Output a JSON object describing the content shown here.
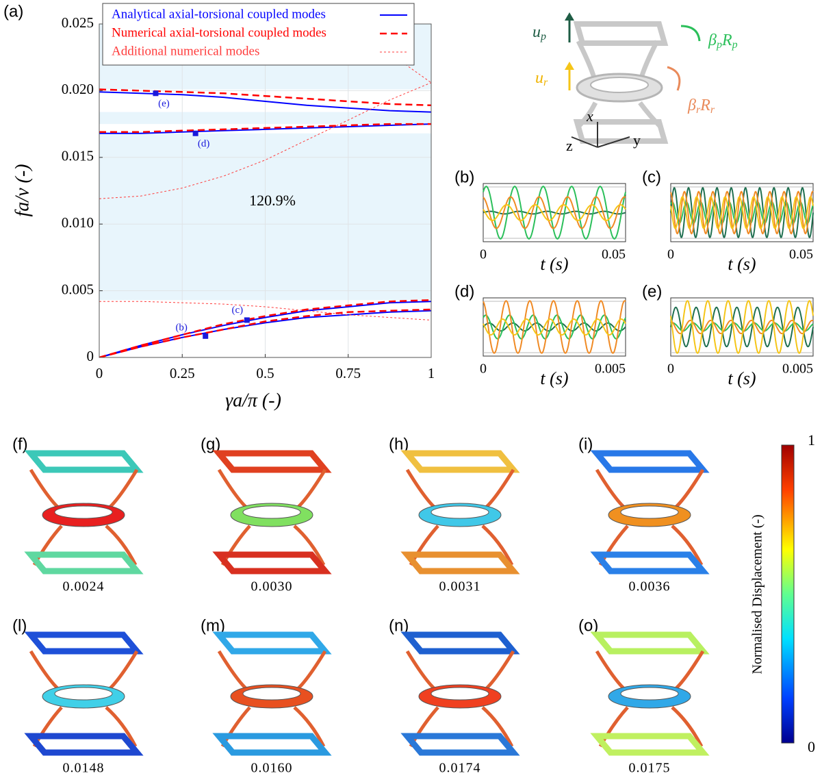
{
  "chart_data": [
    {
      "type": "line",
      "label": "(a)",
      "xlabel": "γa/π (-)",
      "ylabel": "fa/ν (-)",
      "x": [
        0,
        0.125,
        0.25,
        0.375,
        0.5,
        0.625,
        0.75,
        0.875,
        1
      ],
      "xlim": [
        0,
        1
      ],
      "xticks": [
        0,
        0.25,
        0.5,
        0.75,
        1
      ],
      "ylim": [
        0,
        0.025
      ],
      "yticks": [
        0,
        0.005,
        {
          "value": 0.01,
          "label": "0.010"
        },
        0.015,
        {
          "value": 0.02,
          "label": "0.020"
        },
        0.025
      ],
      "grid": true,
      "series": [
        {
          "name": "Analytical axial-torsional coupled modes",
          "color": "#0000ff",
          "style": "solid",
          "values": [
            [
              0,
              0.0009,
              0.0017,
              0.0024,
              0.003,
              0.0035,
              0.0038,
              0.0041,
              0.0042
            ],
            [
              0,
              0.0008,
              0.0015,
              0.0021,
              0.0026,
              0.003,
              0.0032,
              0.0034,
              0.0035
            ],
            [
              0.0168,
              0.0168,
              0.0169,
              0.017,
              0.0171,
              0.0172,
              0.0173,
              0.0174,
              0.0175
            ],
            [
              0.0199,
              0.0198,
              0.0197,
              0.0195,
              0.0192,
              0.0189,
              0.0187,
              0.0185,
              0.0184
            ]
          ]
        },
        {
          "name": "Numerical axial-torsional coupled modes",
          "color": "#ff0000",
          "style": "dashed",
          "values": [
            [
              0,
              0.0009,
              0.0017,
              0.0025,
              0.0031,
              0.0036,
              0.0039,
              0.0042,
              0.0043
            ],
            [
              0,
              0.0008,
              0.0015,
              0.0021,
              0.0027,
              0.0031,
              0.0034,
              0.0035,
              0.0036
            ],
            [
              0.0169,
              0.0169,
              0.017,
              0.0171,
              0.0172,
              0.0173,
              0.0174,
              0.0175,
              0.0175
            ],
            [
              0.0201,
              0.02,
              0.0199,
              0.0198,
              0.0196,
              0.0194,
              0.0192,
              0.019,
              0.0189
            ]
          ]
        },
        {
          "name": "Additional numerical modes",
          "color": "#ff3b3b",
          "style": "dotted",
          "values": [
            [
              0.0042,
              0.0042,
              0.0041,
              0.004,
              0.0038,
              0.0035,
              0.0032,
              0.003,
              0.0028
            ],
            [
              0.0119,
              0.0121,
              0.0127,
              0.0136,
              0.0148,
              0.0163,
              0.0178,
              0.0193,
              0.0206
            ],
            [
              null,
              null,
              null,
              null,
              null,
              null,
              0.025,
              0.0228,
              0.0206
            ]
          ]
        }
      ],
      "bands": [
        [
          0.0043,
          0.0168
        ],
        [
          0.0175,
          0.0184
        ],
        [
          0.0201,
          0.025
        ]
      ],
      "annotation": "120.9%",
      "points": [
        {
          "label": "(b)",
          "x": 0.32,
          "y": 0.0016
        },
        {
          "label": "(c)",
          "x": 0.445,
          "y": 0.0028
        },
        {
          "label": "(d)",
          "x": 0.29,
          "y": 0.0168
        },
        {
          "label": "(e)",
          "x": 0.17,
          "y": 0.0198
        }
      ]
    },
    {
      "type": "wave",
      "label": "(b)",
      "xlabel": "t (s)",
      "xlim": [
        0,
        0.05
      ],
      "xticks": [
        0,
        0.05
      ],
      "ylim": [
        -1,
        1
      ],
      "series": [
        {
          "color": "#1f6f50",
          "amplitude": 0.05,
          "cycles": 5
        },
        {
          "color": "#2bbf5a",
          "amplitude": 1,
          "cycles": 5
        },
        {
          "color": "#f08a24",
          "amplitude": 0.6,
          "cycles": 5
        },
        {
          "color": "#f5c518",
          "amplitude": 0.3,
          "cycles": 5
        }
      ]
    },
    {
      "type": "wave",
      "label": "(c)",
      "xlabel": "t (s)",
      "xlim": [
        0,
        0.05
      ],
      "xticks": [
        0,
        0.05
      ],
      "ylim": [
        -1,
        1
      ],
      "series": [
        {
          "color": "#1f6f50",
          "amplitude": 0.95,
          "cycles": 10
        },
        {
          "color": "#2bbf5a",
          "amplitude": 0.4,
          "cycles": 10
        },
        {
          "color": "#f08a24",
          "amplitude": 0.8,
          "cycles": 10
        },
        {
          "color": "#f5c518",
          "amplitude": 0.6,
          "cycles": 10
        }
      ]
    },
    {
      "type": "wave",
      "label": "(d)",
      "xlabel": "t (s)",
      "xlim": [
        0,
        0.005
      ],
      "xticks": [
        0,
        0.005
      ],
      "ylim": [
        -1,
        1
      ],
      "series": [
        {
          "color": "#1f6f50",
          "amplitude": 0.15,
          "cycles": 6
        },
        {
          "color": "#2bbf5a",
          "amplitude": 0.45,
          "cycles": 6
        },
        {
          "color": "#f08a24",
          "amplitude": 1,
          "cycles": 6
        },
        {
          "color": "#f5c518",
          "amplitude": 0.3,
          "cycles": 6
        }
      ]
    },
    {
      "type": "wave",
      "label": "(e)",
      "xlabel": "t (s)",
      "xlim": [
        0,
        0.005
      ],
      "xticks": [
        0,
        0.005
      ],
      "ylim": [
        -1,
        1
      ],
      "series": [
        {
          "color": "#1f6f50",
          "amplitude": 0.75,
          "cycles": 7
        },
        {
          "color": "#2bbf5a",
          "amplitude": 0.15,
          "cycles": 7
        },
        {
          "color": "#f08a24",
          "amplitude": 0.25,
          "cycles": 7
        },
        {
          "color": "#f5c518",
          "amplitude": 1,
          "cycles": 7
        }
      ]
    }
  ],
  "diagram": {
    "up": [
      "u",
      "p"
    ],
    "beta_p": [
      "β",
      "p",
      "R",
      "p"
    ],
    "ur": [
      "u",
      "r"
    ],
    "beta_r": [
      "β",
      "r",
      "R",
      "r"
    ],
    "axis_x": "x",
    "axis_y": "y",
    "axis_z": "z"
  },
  "modes": [
    {
      "label": "(f)",
      "value": "0.0024"
    },
    {
      "label": "(g)",
      "value": "0.0030"
    },
    {
      "label": "(h)",
      "value": "0.0031"
    },
    {
      "label": "(i)",
      "value": "0.0036"
    },
    {
      "label": "(l)",
      "value": "0.0148"
    },
    {
      "label": "(m)",
      "value": "0.0160"
    },
    {
      "label": "(n)",
      "value": "0.0174"
    },
    {
      "label": "(o)",
      "value": "0.0175"
    }
  ],
  "colorbar": {
    "title": "Normalised Displacement (-)",
    "max": "1",
    "min": "0"
  }
}
